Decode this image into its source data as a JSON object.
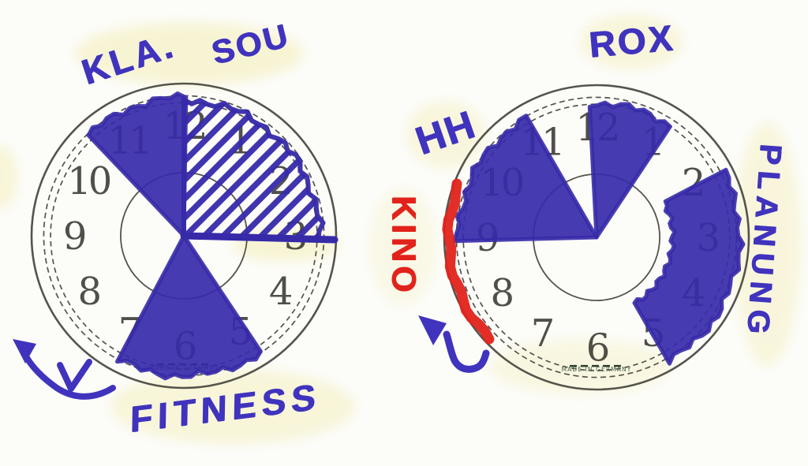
{
  "colors": {
    "marker_blue": "#362aa9",
    "marker_blue_bright": "#4033bd",
    "marker_red": "#e2231b",
    "dial_line": "#55544c",
    "numeral_ink": "#3e3d35",
    "made_in_ink": "#3f5a46",
    "highlighter_yellow": "#f0e89a",
    "paper": "#fcfcf9"
  },
  "annotations": {
    "left_clock": {
      "top_left": "KLA.",
      "top_right": "SOU",
      "bottom": "FITNESS"
    },
    "right_clock": {
      "top": "ROX",
      "upper_left": "HH",
      "left_side": "KINO",
      "right_side": "PLANUNG"
    }
  },
  "icons": {
    "left_arrow": "curved-arrow-up-left-icon",
    "left_check": "checkmark-icon",
    "right_arrow": "bent-arrow-up-left-icon"
  },
  "chart_data": [
    {
      "type": "clock-sectors",
      "name": "left-clock",
      "made_in": "MADE IN GERMANY",
      "numerals": [
        "1",
        "2",
        "3",
        "4",
        "5",
        "6",
        "7",
        "8",
        "9",
        "10",
        "11",
        "12"
      ],
      "segments": [
        {
          "label": "KLA.",
          "from_hour": 10.55,
          "to_hour": 12.03,
          "fill": "solid",
          "color": "blue",
          "outer_ratio": 0.91
        },
        {
          "label": "SOU",
          "from_hour": 12.0,
          "to_hour": 15.05,
          "fill": "hatched",
          "color": "blue",
          "outer_ratio": 0.89
        },
        {
          "label": "FITNESS",
          "from_hour": 4.88,
          "to_hour": 6.93,
          "fill": "solid",
          "color": "blue",
          "outer_ratio": 0.92
        }
      ]
    },
    {
      "type": "clock-sectors",
      "name": "right-clock",
      "made_in": "MADE IN GERMANY",
      "numerals": [
        "1",
        "2",
        "3",
        "4",
        "5",
        "6",
        "7",
        "8",
        "9",
        "10",
        "11",
        "12"
      ],
      "segments": [
        {
          "label": "HH",
          "from_hour": 8.95,
          "to_hour": 11.0,
          "fill": "solid",
          "color": "blue",
          "outer_ratio": 0.91
        },
        {
          "label": "ROX",
          "from_hour": 11.9,
          "to_hour": 13.12,
          "fill": "solid",
          "color": "blue",
          "outer_ratio": 0.88
        },
        {
          "label": "PLANUNG",
          "from_hour": 14.08,
          "to_hour": 17.0,
          "fill": "solid",
          "color": "blue",
          "outer_ratio": 0.94,
          "inner_ratio": 0.5
        },
        {
          "label": "KINO",
          "from_hour": 7.55,
          "to_hour": 9.7,
          "fill": "arc",
          "color": "red",
          "outer_ratio": 0.97
        }
      ]
    }
  ]
}
